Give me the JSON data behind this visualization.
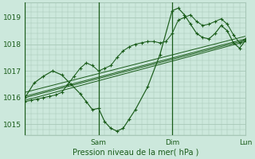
{
  "background_color": "#cce8dc",
  "plot_bg_color": "#cce8dc",
  "grid_color": "#a8c8b8",
  "line_color": "#1a5c1a",
  "ylabel": "Pression niveau de la mer( hPa )",
  "yticks": [
    1015,
    1016,
    1017,
    1018,
    1019
  ],
  "ylim": [
    1014.6,
    1019.55
  ],
  "xlim": [
    0,
    72
  ],
  "xtick_positions": [
    24,
    48,
    72
  ],
  "xtick_labels": [
    "Sam",
    "Dim",
    "Lun"
  ],
  "zigzag_x": [
    0,
    3,
    6,
    9,
    12,
    15,
    18,
    20,
    22,
    24,
    26,
    28,
    30,
    32,
    34,
    36,
    40,
    44,
    48,
    50,
    52,
    54,
    56,
    58,
    60,
    62,
    64,
    66,
    68,
    70,
    72
  ],
  "zigzag_y": [
    1016.0,
    1016.55,
    1016.8,
    1017.0,
    1016.85,
    1016.5,
    1016.15,
    1015.85,
    1015.55,
    1015.6,
    1015.1,
    1014.85,
    1014.75,
    1014.85,
    1015.2,
    1015.55,
    1016.4,
    1017.6,
    1019.25,
    1019.35,
    1019.1,
    1018.75,
    1018.4,
    1018.25,
    1018.2,
    1018.4,
    1018.7,
    1018.5,
    1018.05,
    1017.85,
    1018.15
  ],
  "main_x": [
    0,
    2,
    4,
    6,
    8,
    10,
    12,
    14,
    16,
    18,
    20,
    22,
    24,
    26,
    28,
    30,
    32,
    34,
    36,
    38,
    40,
    42,
    44,
    46,
    48,
    50,
    52,
    54,
    56,
    58,
    60,
    62,
    64,
    66,
    68,
    70,
    72
  ],
  "main_y": [
    1015.85,
    1015.9,
    1015.95,
    1016.0,
    1016.05,
    1016.1,
    1016.2,
    1016.5,
    1016.8,
    1017.1,
    1017.3,
    1017.2,
    1017.0,
    1017.1,
    1017.2,
    1017.5,
    1017.75,
    1017.9,
    1018.0,
    1018.05,
    1018.1,
    1018.1,
    1018.05,
    1018.1,
    1018.4,
    1018.9,
    1019.0,
    1019.1,
    1018.85,
    1018.7,
    1018.75,
    1018.85,
    1018.95,
    1018.75,
    1018.35,
    1018.05,
    1018.2
  ],
  "trend_lines": [
    {
      "x": [
        0,
        72
      ],
      "y": [
        1015.9,
        1018.1
      ]
    },
    {
      "x": [
        0,
        72
      ],
      "y": [
        1016.0,
        1018.15
      ]
    },
    {
      "x": [
        0,
        72
      ],
      "y": [
        1016.05,
        1018.2
      ]
    },
    {
      "x": [
        0,
        72
      ],
      "y": [
        1016.2,
        1018.3
      ]
    }
  ]
}
